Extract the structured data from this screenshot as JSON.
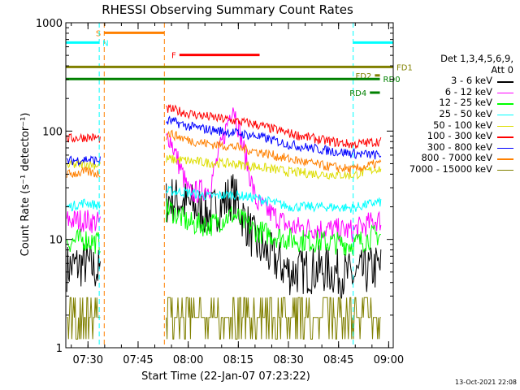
{
  "chart_data": {
    "type": "line",
    "title": "RHESSI Observing Summary Count Rates",
    "xlabel": "Start Time (22-Jan-07 07:23:22)",
    "ylabel": "Count Rate (s⁻¹ detector⁻¹)",
    "yscale": "log",
    "ylim": [
      1,
      1000
    ],
    "xlim_minutes": [
      0,
      98
    ],
    "x_ticks": [
      "07:30",
      "07:45",
      "08:00",
      "08:15",
      "08:30",
      "08:45",
      "09:00"
    ],
    "y_ticks": [
      "1",
      "10",
      "100",
      "1000"
    ],
    "legend_title_lines": [
      "Det 1,3,4,5,6,9,",
      "Att 0"
    ],
    "series": [
      {
        "name": "3 - 6 keV",
        "color": "#000000",
        "values": [
          5.5,
          6.0,
          4.8,
          24.0,
          21.0,
          17.0,
          26.0,
          9.0,
          5.0,
          5.3,
          4.5,
          5.5
        ]
      },
      {
        "name": "6 - 12 keV",
        "color": "#ff00ff",
        "values": [
          15.0,
          15.0,
          14.0,
          90.0,
          26.0,
          30.0,
          180.0,
          22.0,
          13.0,
          12.5,
          12.0,
          15.0
        ]
      },
      {
        "name": "12 - 25 keV",
        "color": "#00ff00",
        "values": [
          9.5,
          10.0,
          9.0,
          19.0,
          14.0,
          13.5,
          17.0,
          12.0,
          10.0,
          9.5,
          9.0,
          11.0
        ]
      },
      {
        "name": "25 - 50 keV",
        "color": "#00ffff",
        "values": [
          20.0,
          22.0,
          20.0,
          28.0,
          27.0,
          25.0,
          26.0,
          24.0,
          20.0,
          20.0,
          19.5,
          22.0
        ]
      },
      {
        "name": "50 - 100 keV",
        "color": "#dddd00",
        "values": [
          48.0,
          50.0,
          48.0,
          55.0,
          53.0,
          51.0,
          50.0,
          47.0,
          42.0,
          40.0,
          39.0,
          45.0
        ]
      },
      {
        "name": "100 - 300 keV",
        "color": "#ff0000",
        "values": [
          85.0,
          88.0,
          85.0,
          160.0,
          145.0,
          135.0,
          125.0,
          115.0,
          95.0,
          82.0,
          75.0,
          80.0
        ]
      },
      {
        "name": "300 - 800 keV",
        "color": "#0000ff",
        "values": [
          53.0,
          55.0,
          53.0,
          125.0,
          110.0,
          103.0,
          97.0,
          90.0,
          75.0,
          67.0,
          62.0,
          60.0
        ]
      },
      {
        "name": "800 - 7000 keV",
        "color": "#ff8000",
        "values": [
          40.0,
          42.0,
          40.0,
          95.0,
          82.0,
          76.0,
          72.0,
          65.0,
          55.0,
          48.0,
          44.0,
          50.0
        ]
      },
      {
        "name": "7000 - 15000 keV",
        "color": "#808000",
        "values": [
          2.5,
          2.2,
          2.5,
          2.5,
          2.2,
          2.0,
          2.2,
          2.0,
          2.0,
          2.0,
          2.0,
          2.5
        ]
      }
    ],
    "x_minutes": [
      1.0,
      6.0,
      11.0,
      31.0,
      37.0,
      43.0,
      50.0,
      57.0,
      67.0,
      77.0,
      86.0,
      93.0
    ],
    "gaps_minutes": [
      [
        10.5,
        30.0
      ],
      [
        94.5,
        98.0
      ]
    ],
    "intervals": [
      {
        "label": "S",
        "color": "#ff8000",
        "start": 11.5,
        "end": 29.5,
        "y": 0.969,
        "label_side": "left",
        "dashed_lines": true
      },
      {
        "label": "N",
        "color": "#00ffff",
        "start": 0,
        "end": 10.0,
        "y": 0.939,
        "label_side": "right",
        "dashed_lines": true
      },
      {
        "label": "N",
        "color": "#00ffff",
        "start": 86.0,
        "end": 98,
        "y": 0.939,
        "label_side": "none",
        "dashed_lines": true
      },
      {
        "label": "F",
        "color": "#ff0000",
        "start": 34.0,
        "end": 58.0,
        "y": 0.901,
        "label_side": "left",
        "dashed_lines": false
      },
      {
        "label": "FD1",
        "color": "#808000",
        "start": 0,
        "end": 98,
        "y": 0.864,
        "label_side": "right",
        "dashed_lines": false
      },
      {
        "label": "FD2",
        "color": "#808000",
        "start": 92.5,
        "end": 94.0,
        "y": 0.838,
        "label_side": "left",
        "dashed_lines": false
      },
      {
        "label": "RD0",
        "color": "#008000",
        "start": 0,
        "end": 94.0,
        "y": 0.827,
        "label_side": "right",
        "dashed_lines": false
      },
      {
        "label": "RD4",
        "color": "#008000",
        "start": 91.0,
        "end": 94.0,
        "y": 0.785,
        "label_side": "left",
        "dashed_lines": false
      }
    ]
  },
  "timestamp": "13-Oct-2021 22:08"
}
